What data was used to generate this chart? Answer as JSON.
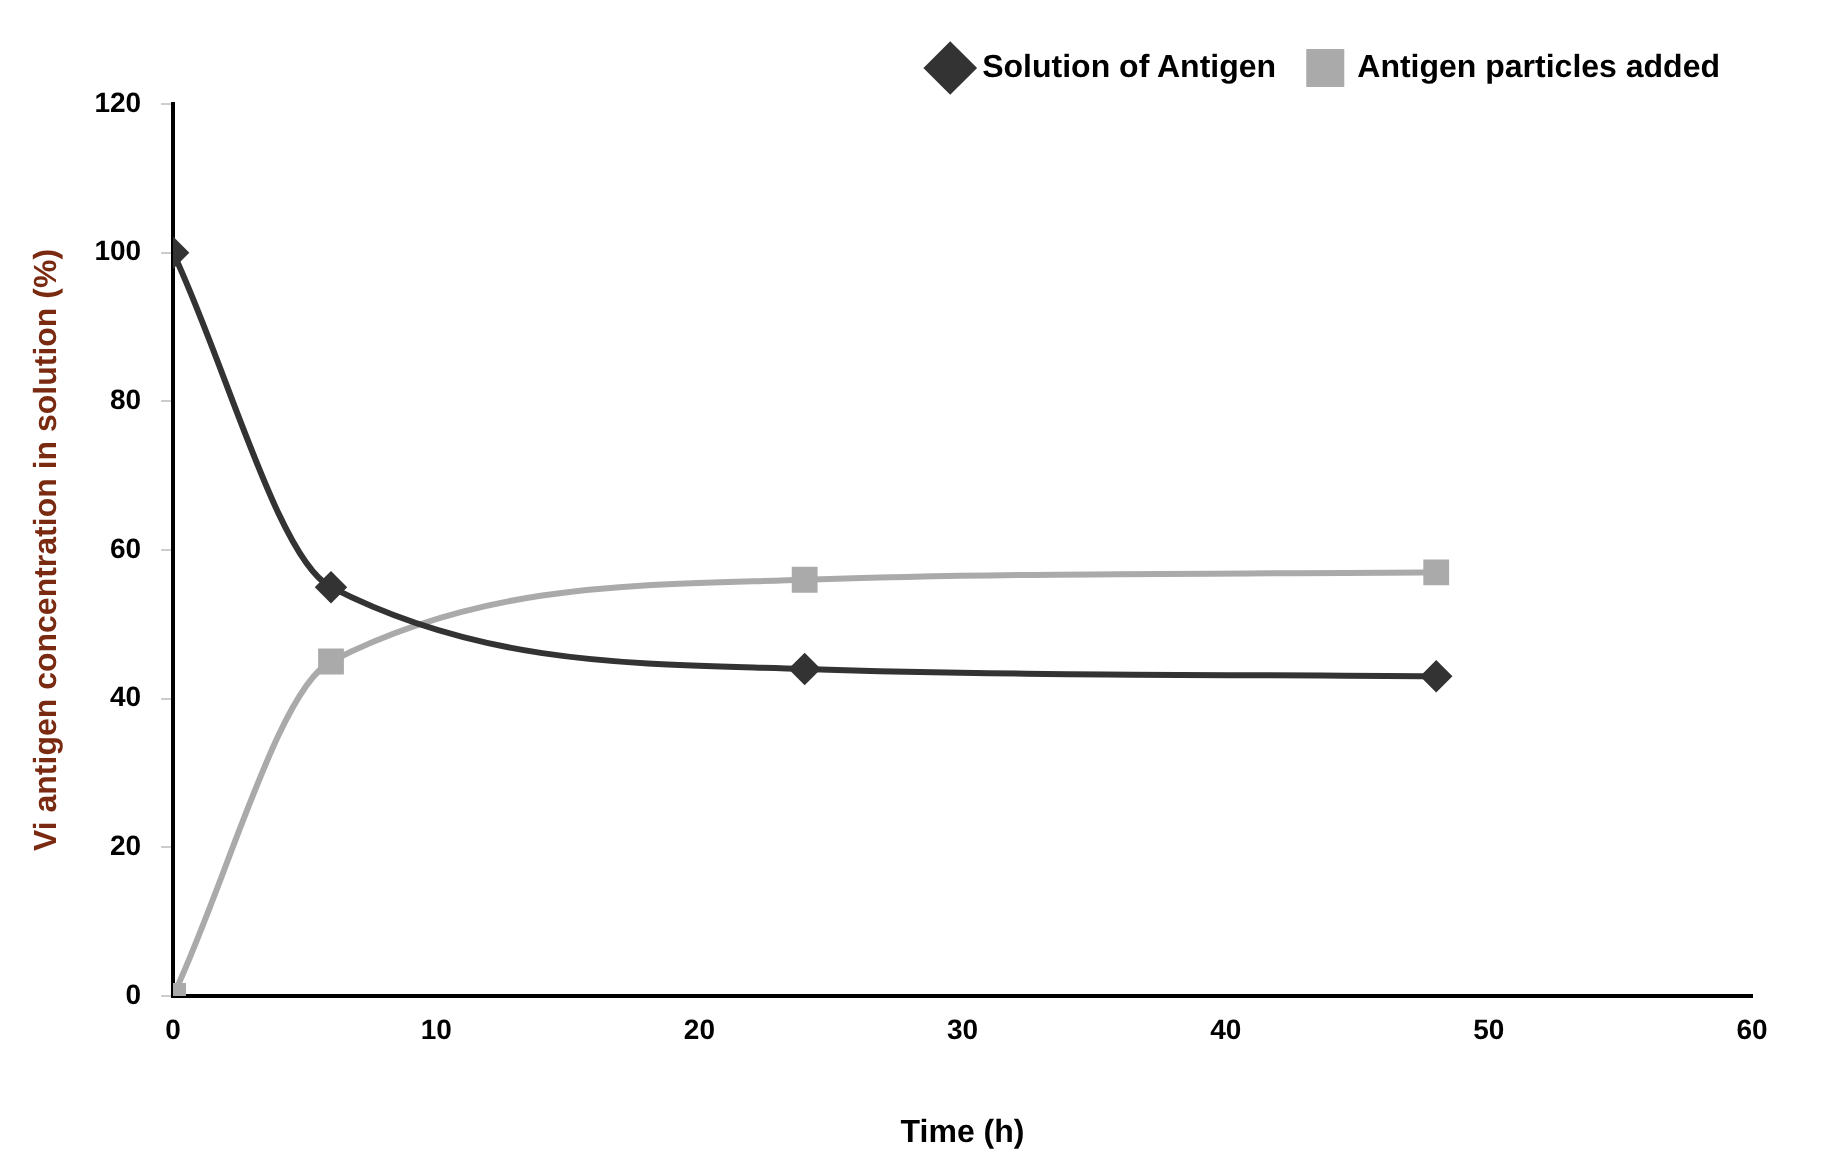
{
  "chart_data": {
    "type": "line",
    "xlabel": "Time (h)",
    "ylabel": "Vi antigen concentration in solution (%)",
    "x": [
      0,
      6,
      24,
      48
    ],
    "series": [
      {
        "name": "Solution of Antigen",
        "color": "#333333",
        "marker": "diamond",
        "values": [
          100,
          55,
          44,
          43
        ]
      },
      {
        "name": "Antigen particles added",
        "color": "#aaaaaa",
        "marker": "square",
        "values": [
          0,
          45,
          56,
          57
        ]
      }
    ],
    "xlim": [
      0,
      60
    ],
    "xticks": [
      0,
      10,
      20,
      30,
      40,
      50,
      60
    ],
    "ylim": [
      0,
      120
    ],
    "yticks": [
      0,
      20,
      40,
      60,
      80,
      100,
      120
    ],
    "grid": false,
    "legend": "top right",
    "line_style": "solid"
  }
}
